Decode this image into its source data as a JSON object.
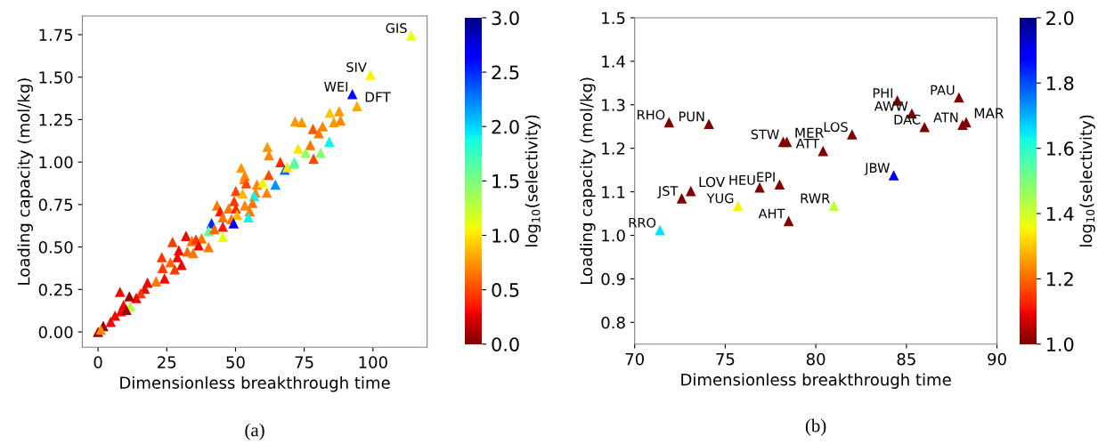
{
  "chart_data": [
    {
      "type": "scatter",
      "xlabel": "Dimensionless breakthrough time",
      "ylabel": "Loading capacity (mol/kg)",
      "clabel": "log$_{10}$(selectivity)",
      "marker": "triangle",
      "x": [
        113.9,
        99.1,
        92.5,
        94.2,
        71.7,
        74.1,
        84.3,
        87.7,
        85.8,
        88.2,
        78.2,
        81.7,
        80.3,
        84.1,
        61.6,
        72.8,
        62.2,
        77.2,
        75.5,
        81.0,
        78.4,
        71.4,
        66.3,
        67.9,
        68.9,
        52.1,
        62.1,
        53.4,
        53.2,
        53.9,
        57.8,
        59.9,
        64.5,
        71.2,
        50.1,
        52.6,
        57.3,
        61.4,
        56.8,
        49.5,
        53.4,
        56.2,
        43.3,
        44.4,
        47.5,
        50.1,
        50.6,
        55.2,
        54.7,
        45.4,
        48.5,
        41.3,
        49.3,
        45.4,
        40.2,
        45.4,
        42.3,
        32.0,
        27.1,
        34.1,
        35.6,
        37.7,
        40.2,
        36.6,
        29.4,
        32.5,
        34.6,
        23.2,
        28.9,
        26.3,
        30.4,
        23.5,
        27.9,
        24.2,
        21.1,
        18.0,
        17.0,
        15.5,
        13.9,
        8.0,
        11.4,
        11.7,
        9.3,
        8.3,
        10.3,
        6.2,
        4.6,
        1.9,
        0.0,
        1.0
      ],
      "values": [
        1.745,
        1.515,
        1.4,
        1.33,
        1.24,
        1.235,
        1.29,
        1.3,
        1.235,
        1.245,
        1.195,
        1.21,
        1.17,
        1.12,
        1.09,
        1.08,
        1.04,
        1.1,
        1.055,
        1.055,
        1.02,
        1.0,
        1.0,
        0.955,
        0.97,
        0.967,
        0.925,
        0.92,
        0.9,
        0.875,
        0.867,
        0.88,
        0.867,
        0.99,
        0.83,
        0.815,
        0.82,
        0.82,
        0.8,
        0.77,
        0.745,
        0.76,
        0.745,
        0.71,
        0.727,
        0.727,
        0.69,
        0.71,
        0.675,
        0.675,
        0.665,
        0.64,
        0.64,
        0.62,
        0.595,
        0.56,
        0.605,
        0.565,
        0.53,
        0.535,
        0.545,
        0.55,
        0.5,
        0.51,
        0.48,
        0.473,
        0.464,
        0.44,
        0.44,
        0.41,
        0.395,
        0.377,
        0.368,
        0.315,
        0.298,
        0.29,
        0.254,
        0.228,
        0.2,
        0.236,
        0.21,
        0.15,
        0.158,
        0.122,
        0.13,
        0.096,
        0.06,
        0.035,
        0.0,
        0.014
      ],
      "cvalues": [
        1.1,
        1.05,
        2.6,
        0.8,
        0.75,
        0.75,
        0.9,
        0.75,
        0.75,
        0.7,
        0.55,
        0.7,
        0.65,
        1.9,
        0.75,
        1.0,
        0.7,
        0.65,
        1.4,
        1.45,
        0.5,
        1.7,
        0.4,
        2.3,
        1.0,
        0.75,
        0.5,
        0.7,
        0.7,
        0.5,
        0.7,
        1.05,
        2.2,
        1.6,
        0.5,
        0.85,
        0.7,
        0.7,
        1.9,
        0.45,
        0.7,
        0.65,
        0.65,
        0.35,
        0.65,
        0.4,
        0.85,
        0.65,
        1.9,
        0.65,
        0.65,
        2.5,
        2.7,
        0.35,
        1.6,
        1.1,
        0.6,
        0.3,
        0.45,
        0.65,
        0.45,
        0.65,
        0.65,
        0.3,
        0.3,
        0.6,
        0.65,
        0.45,
        0.3,
        0.6,
        0.3,
        0.45,
        0.45,
        0.3,
        0.65,
        0.3,
        0.3,
        0.45,
        0.3,
        0.3,
        0.1,
        1.3,
        0.3,
        0.3,
        0.1,
        0.3,
        0.3,
        0.05,
        0.05,
        0.7
      ],
      "xlim": [
        -5.7,
        119.7
      ],
      "ylim": [
        -0.09,
        1.86
      ],
      "xticks": [
        0,
        25,
        50,
        75,
        100
      ],
      "yticks": [
        {
          "value": 0,
          "label": "0.00"
        },
        {
          "value": 0.25,
          "label": "0.25"
        },
        {
          "value": 0.5,
          "label": "0.50"
        },
        {
          "value": 0.75,
          "label": "0.75"
        },
        {
          "value": 1.0,
          "label": "1.00"
        },
        {
          "value": 1.25,
          "label": "1.25"
        },
        {
          "value": 1.5,
          "label": "1.50"
        },
        {
          "value": 1.75,
          "label": "1.75"
        }
      ],
      "clim": [
        0.0,
        3.0
      ],
      "cticks": [
        {
          "value": 0,
          "label": "0.0"
        },
        0.5,
        {
          "value": 1,
          "label": "1.0"
        },
        1.5,
        {
          "value": 2,
          "label": "2.0"
        },
        2.5,
        {
          "value": 3,
          "label": "3.0"
        }
      ],
      "annotations": [
        {
          "text": "GIS",
          "x": 113.9,
          "y": 1.745
        },
        {
          "text": "SIV",
          "x": 99.1,
          "y": 1.515
        },
        {
          "text": "WEI",
          "x": 92.5,
          "y": 1.4
        },
        {
          "text": "DFT",
          "x": 94.2,
          "y": 1.33
        },
        "(a)"
      ]
    },
    {
      "type": "scatter",
      "xlabel": "Dimensionless breakthrough time",
      "ylabel": "Loading capacity (mol/kg)",
      "clabel": "log$_{10}$(selectivity)",
      "marker": "triangle",
      "x": [
        71.9,
        74.1,
        78.2,
        78.4,
        80.4,
        82.0,
        84.5,
        85.3,
        86.0,
        87.9,
        88.1,
        88.3,
        84.3,
        78.0,
        76.9,
        73.1,
        72.6,
        75.7,
        81.0,
        78.5,
        71.4
      ],
      "values": [
        1.26,
        1.256,
        1.215,
        1.215,
        1.194,
        1.232,
        1.31,
        1.28,
        1.249,
        1.317,
        1.254,
        1.26,
        1.138,
        1.117,
        1.11,
        1.102,
        1.085,
        1.068,
        1.068,
        1.033,
        1.012
      ],
      "cvalues": [
        1.0,
        1.0,
        1.0,
        1.0,
        1.0,
        1.0,
        1.0,
        1.0,
        1.0,
        1.0,
        1.0,
        1.0,
        1.9,
        1.0,
        1.0,
        1.0,
        1.0,
        1.35,
        1.42,
        1.0,
        1.65
      ],
      "xlim": [
        70,
        90
      ],
      "ylim": [
        0.75,
        1.5
      ],
      "xticks": [
        70,
        75,
        80,
        85,
        90
      ],
      "yticks": [
        0.8,
        0.9,
        {
          "value": 1,
          "label": "1.0"
        },
        1.1,
        1.2,
        1.3,
        1.4,
        1.5
      ],
      "clim": [
        1.0,
        2.0
      ],
      "cticks": [
        {
          "value": 1,
          "label": "1.0"
        },
        1.2,
        1.4,
        1.6,
        1.8,
        {
          "value": 2,
          "label": "2.0"
        }
      ],
      "annotations": [
        {
          "text": "RHO",
          "x": 71.9,
          "y": 1.26
        },
        {
          "text": "PUN",
          "x": 74.1,
          "y": 1.256
        },
        {
          "text": "STW",
          "x": 78.2,
          "y": 1.215
        },
        {
          "text": "MER",
          "x": 78.4,
          "y": 1.215
        },
        {
          "text": "ATT",
          "x": 80.4,
          "y": 1.194
        },
        {
          "text": "LOS",
          "x": 82.0,
          "y": 1.232
        },
        {
          "text": "PHI",
          "x": 84.5,
          "y": 1.31
        },
        {
          "text": "AWW",
          "x": 85.3,
          "y": 1.28
        },
        {
          "text": "DAC",
          "x": 86.0,
          "y": 1.249
        },
        {
          "text": "PAU",
          "x": 87.9,
          "y": 1.317
        },
        {
          "text": "ATN",
          "x": 88.1,
          "y": 1.254
        },
        {
          "text": "MAR",
          "x": 88.3,
          "y": 1.26
        },
        {
          "text": "JBW",
          "x": 84.3,
          "y": 1.138
        },
        {
          "text": "EPI",
          "x": 78.0,
          "y": 1.117
        },
        {
          "text": "HEU",
          "x": 76.9,
          "y": 1.11
        },
        {
          "text": "LOV",
          "x": 73.1,
          "y": 1.102
        },
        {
          "text": "JST",
          "x": 72.6,
          "y": 1.085
        },
        {
          "text": "YUG",
          "x": 75.7,
          "y": 1.068
        },
        {
          "text": "RWR",
          "x": 81.0,
          "y": 1.068
        },
        {
          "text": "AHT",
          "x": 78.5,
          "y": 1.033
        },
        {
          "text": "RRO",
          "x": 71.4,
          "y": 1.012
        },
        "(b)"
      ]
    }
  ]
}
